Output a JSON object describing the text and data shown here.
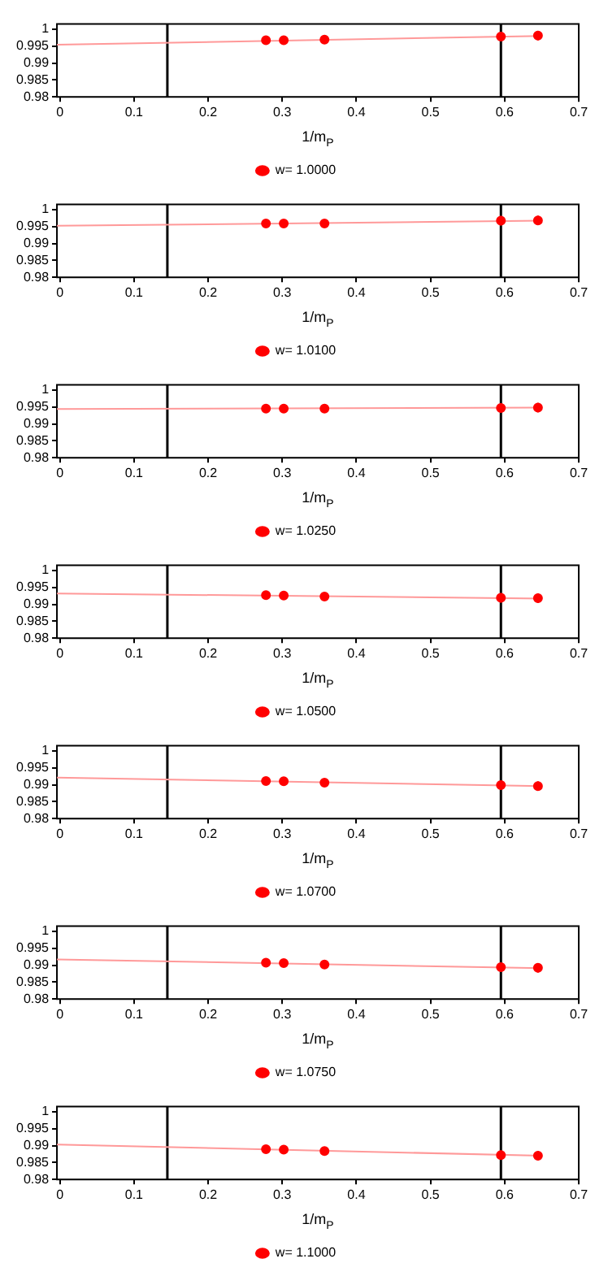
{
  "chart_data": [
    {
      "type": "scatter",
      "xlabel": "1/m$_{P}$",
      "xlim": [
        -0.004,
        0.7
      ],
      "xticks": [
        0,
        0.1,
        0.2,
        0.3,
        0.4,
        0.5,
        0.6,
        0.7
      ],
      "ylim": [
        0.98,
        1.0015
      ],
      "yticks": [
        0.98,
        0.985,
        0.99,
        0.995,
        1
      ],
      "grid": false,
      "legend": "bottom",
      "marker": "circle",
      "ref_lines": [
        {
          "axis": "x",
          "value": 0.145,
          "color": "#000000"
        },
        {
          "axis": "x",
          "value": 0.595,
          "color": "#000000"
        }
      ],
      "series": [
        {
          "name": "w= 1.0000",
          "type": "scatter",
          "color": "#ff0000",
          "x": [
            0.278,
            0.302,
            0.357,
            0.595,
            0.645
          ],
          "values": [
            0.9967,
            0.9967,
            0.9969,
            0.9978,
            0.9981
          ],
          "errors": [
            0.0011,
            0.0011,
            0.0011,
            0.0014,
            0.0014
          ]
        },
        {
          "type": "line",
          "color": "#ff9999",
          "x": [
            -0.004,
            0.65
          ],
          "values": [
            0.9954,
            0.998
          ],
          "marker": "none"
        }
      ]
    },
    {
      "type": "scatter",
      "xlabel": "1/m$_{P}$",
      "xlim": [
        -0.004,
        0.7
      ],
      "xticks": [
        0,
        0.1,
        0.2,
        0.3,
        0.4,
        0.5,
        0.6,
        0.7
      ],
      "ylim": [
        0.98,
        1.0015
      ],
      "yticks": [
        0.98,
        0.985,
        0.99,
        0.995,
        1
      ],
      "grid": false,
      "legend": "bottom",
      "marker": "circle",
      "ref_lines": [
        {
          "axis": "x",
          "value": 0.145,
          "color": "#000000"
        },
        {
          "axis": "x",
          "value": 0.595,
          "color": "#000000"
        }
      ],
      "series": [
        {
          "name": "w= 1.0100",
          "type": "scatter",
          "color": "#ff0000",
          "x": [
            0.278,
            0.302,
            0.357,
            0.595,
            0.645
          ],
          "values": [
            0.9959,
            0.9959,
            0.9959,
            0.9967,
            0.9968
          ],
          "errors": [
            0.0011,
            0.0011,
            0.0011,
            0.0014,
            0.0014
          ]
        },
        {
          "type": "line",
          "color": "#ff9999",
          "x": [
            -0.004,
            0.65
          ],
          "values": [
            0.9952,
            0.9967
          ],
          "marker": "none"
        }
      ]
    },
    {
      "type": "scatter",
      "xlabel": "1/m$_{P}$",
      "xlim": [
        -0.004,
        0.7
      ],
      "xticks": [
        0,
        0.1,
        0.2,
        0.3,
        0.4,
        0.5,
        0.6,
        0.7
      ],
      "ylim": [
        0.98,
        1.0015
      ],
      "yticks": [
        0.98,
        0.985,
        0.99,
        0.995,
        1
      ],
      "grid": false,
      "legend": "bottom",
      "marker": "circle",
      "ref_lines": [
        {
          "axis": "x",
          "value": 0.145,
          "color": "#000000"
        },
        {
          "axis": "x",
          "value": 0.595,
          "color": "#000000"
        }
      ],
      "series": [
        {
          "name": "w= 1.0250",
          "type": "scatter",
          "color": "#ff0000",
          "x": [
            0.278,
            0.302,
            0.357,
            0.595,
            0.645
          ],
          "values": [
            0.9945,
            0.9945,
            0.9945,
            0.9947,
            0.9948
          ],
          "errors": [
            0.0011,
            0.0011,
            0.0011,
            0.0014,
            0.0014
          ]
        },
        {
          "type": "line",
          "color": "#ff9999",
          "x": [
            -0.004,
            0.65
          ],
          "values": [
            0.9944,
            0.9948
          ],
          "marker": "none"
        }
      ]
    },
    {
      "type": "scatter",
      "xlabel": "1/m$_{P}$",
      "xlim": [
        -0.004,
        0.7
      ],
      "xticks": [
        0,
        0.1,
        0.2,
        0.3,
        0.4,
        0.5,
        0.6,
        0.7
      ],
      "ylim": [
        0.98,
        1.0015
      ],
      "yticks": [
        0.98,
        0.985,
        0.99,
        0.995,
        1
      ],
      "grid": false,
      "legend": "bottom",
      "marker": "circle",
      "ref_lines": [
        {
          "axis": "x",
          "value": 0.145,
          "color": "#000000"
        },
        {
          "axis": "x",
          "value": 0.595,
          "color": "#000000"
        }
      ],
      "series": [
        {
          "name": "w= 1.0500",
          "type": "scatter",
          "color": "#ff0000",
          "x": [
            0.278,
            0.302,
            0.357,
            0.595,
            0.645
          ],
          "values": [
            0.9927,
            0.9926,
            0.9923,
            0.9919,
            0.9918
          ],
          "errors": [
            0.0011,
            0.0011,
            0.0011,
            0.0014,
            0.0014
          ]
        },
        {
          "type": "line",
          "color": "#ff9999",
          "x": [
            -0.004,
            0.65
          ],
          "values": [
            0.9932,
            0.9917
          ],
          "marker": "none"
        }
      ]
    },
    {
      "type": "scatter",
      "xlabel": "1/m$_{P}$",
      "xlim": [
        -0.004,
        0.7
      ],
      "xticks": [
        0,
        0.1,
        0.2,
        0.3,
        0.4,
        0.5,
        0.6,
        0.7
      ],
      "ylim": [
        0.98,
        1.0015
      ],
      "yticks": [
        0.98,
        0.985,
        0.99,
        0.995,
        1
      ],
      "grid": false,
      "legend": "bottom",
      "marker": "circle",
      "ref_lines": [
        {
          "axis": "x",
          "value": 0.145,
          "color": "#000000"
        },
        {
          "axis": "x",
          "value": 0.595,
          "color": "#000000"
        }
      ],
      "series": [
        {
          "name": "w= 1.0700",
          "type": "scatter",
          "color": "#ff0000",
          "x": [
            0.278,
            0.302,
            0.357,
            0.595,
            0.645
          ],
          "values": [
            0.9911,
            0.991,
            0.9906,
            0.9899,
            0.9896
          ],
          "errors": [
            0.0011,
            0.0011,
            0.0011,
            0.0014,
            0.0014
          ]
        },
        {
          "type": "line",
          "color": "#ff9999",
          "x": [
            -0.004,
            0.65
          ],
          "values": [
            0.9921,
            0.9896
          ],
          "marker": "none"
        }
      ]
    },
    {
      "type": "scatter",
      "xlabel": "1/m$_{P}$",
      "xlim": [
        -0.004,
        0.7
      ],
      "xticks": [
        0,
        0.1,
        0.2,
        0.3,
        0.4,
        0.5,
        0.6,
        0.7
      ],
      "ylim": [
        0.98,
        1.0015
      ],
      "yticks": [
        0.98,
        0.985,
        0.99,
        0.995,
        1
      ],
      "grid": false,
      "legend": "bottom",
      "marker": "circle",
      "ref_lines": [
        {
          "axis": "x",
          "value": 0.145,
          "color": "#000000"
        },
        {
          "axis": "x",
          "value": 0.595,
          "color": "#000000"
        }
      ],
      "series": [
        {
          "name": "w= 1.0750",
          "type": "scatter",
          "color": "#ff0000",
          "x": [
            0.278,
            0.302,
            0.357,
            0.595,
            0.645
          ],
          "values": [
            0.9907,
            0.9906,
            0.9902,
            0.9894,
            0.9892
          ],
          "errors": [
            0.0011,
            0.0011,
            0.0011,
            0.0014,
            0.0014
          ]
        },
        {
          "type": "line",
          "color": "#ff9999",
          "x": [
            -0.004,
            0.65
          ],
          "values": [
            0.9917,
            0.9891
          ],
          "marker": "none"
        }
      ]
    },
    {
      "type": "scatter",
      "xlabel": "1/m$_{P}$",
      "xlim": [
        -0.004,
        0.7
      ],
      "xticks": [
        0,
        0.1,
        0.2,
        0.3,
        0.4,
        0.5,
        0.6,
        0.7
      ],
      "ylim": [
        0.98,
        1.0015
      ],
      "yticks": [
        0.98,
        0.985,
        0.99,
        0.995,
        1
      ],
      "grid": false,
      "legend": "bottom",
      "marker": "circle",
      "ref_lines": [
        {
          "axis": "x",
          "value": 0.145,
          "color": "#000000"
        },
        {
          "axis": "x",
          "value": 0.595,
          "color": "#000000"
        }
      ],
      "series": [
        {
          "name": "w= 1.1000",
          "type": "scatter",
          "color": "#ff0000",
          "x": [
            0.278,
            0.302,
            0.357,
            0.595,
            0.645
          ],
          "values": [
            0.9889,
            0.9888,
            0.9884,
            0.9872,
            0.987
          ],
          "errors": [
            0.0011,
            0.0011,
            0.0011,
            0.0014,
            0.0014
          ]
        },
        {
          "type": "line",
          "color": "#ff9999",
          "x": [
            -0.004,
            0.65
          ],
          "values": [
            0.9903,
            0.987
          ],
          "marker": "none"
        }
      ]
    }
  ]
}
